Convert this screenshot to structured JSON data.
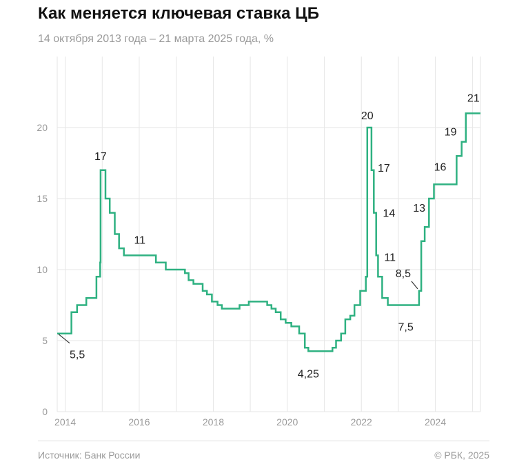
{
  "header": {
    "title": "Как меняется ключевая ставка ЦБ",
    "subtitle": "14 октября 2013 года – 21 марта 2025 года, %"
  },
  "footer": {
    "source": "Источник: Банк России",
    "credit": "© РБК, 2025"
  },
  "colors": {
    "line": "#2eb181",
    "grid": "#e6e6e6",
    "axis_text": "#9a9a9a",
    "label_text": "#222222"
  },
  "chart_data": {
    "type": "line",
    "step": true,
    "title": "Как меняется ключевая ставка ЦБ",
    "subtitle": "14 октября 2013 года – 21 марта 2025 года, %",
    "xlabel": "",
    "ylabel": "",
    "xlim": [
      "2013-10-14",
      "2025-03-21"
    ],
    "ylim": [
      0,
      25
    ],
    "x_ticks": [
      "2014",
      "2016",
      "2018",
      "2020",
      "2022",
      "2024"
    ],
    "y_ticks": [
      "0",
      "5",
      "10",
      "15",
      "20"
    ],
    "grid": true,
    "series": [
      {
        "points": [
          [
            "2013-10-14",
            5.5
          ],
          [
            "2014-03-03",
            7.0
          ],
          [
            "2014-04-28",
            7.5
          ],
          [
            "2014-07-28",
            8.0
          ],
          [
            "2014-11-05",
            9.5
          ],
          [
            "2014-12-12",
            10.5
          ],
          [
            "2014-12-16",
            17.0
          ],
          [
            "2015-02-02",
            15.0
          ],
          [
            "2015-03-16",
            14.0
          ],
          [
            "2015-05-05",
            12.5
          ],
          [
            "2015-06-16",
            11.5
          ],
          [
            "2015-08-03",
            11.0
          ],
          [
            "2016-06-14",
            10.5
          ],
          [
            "2016-09-19",
            10.0
          ],
          [
            "2017-03-27",
            9.75
          ],
          [
            "2017-05-02",
            9.25
          ],
          [
            "2017-06-19",
            9.0
          ],
          [
            "2017-09-18",
            8.5
          ],
          [
            "2017-10-30",
            8.25
          ],
          [
            "2017-12-18",
            7.75
          ],
          [
            "2018-02-12",
            7.5
          ],
          [
            "2018-03-26",
            7.25
          ],
          [
            "2018-09-17",
            7.5
          ],
          [
            "2018-12-17",
            7.75
          ],
          [
            "2019-06-17",
            7.5
          ],
          [
            "2019-07-29",
            7.25
          ],
          [
            "2019-09-09",
            7.0
          ],
          [
            "2019-10-28",
            6.5
          ],
          [
            "2019-12-16",
            6.25
          ],
          [
            "2020-02-10",
            6.0
          ],
          [
            "2020-04-27",
            5.5
          ],
          [
            "2020-06-22",
            4.5
          ],
          [
            "2020-07-27",
            4.25
          ],
          [
            "2021-03-22",
            4.5
          ],
          [
            "2021-04-26",
            5.0
          ],
          [
            "2021-06-15",
            5.5
          ],
          [
            "2021-07-26",
            6.5
          ],
          [
            "2021-09-13",
            6.75
          ],
          [
            "2021-10-25",
            7.5
          ],
          [
            "2021-12-20",
            8.5
          ],
          [
            "2022-02-14",
            9.5
          ],
          [
            "2022-02-28",
            20.0
          ],
          [
            "2022-04-11",
            17.0
          ],
          [
            "2022-05-04",
            14.0
          ],
          [
            "2022-05-27",
            11.0
          ],
          [
            "2022-06-14",
            9.5
          ],
          [
            "2022-07-25",
            8.0
          ],
          [
            "2022-09-19",
            7.5
          ],
          [
            "2023-07-24",
            8.5
          ],
          [
            "2023-08-15",
            12.0
          ],
          [
            "2023-09-18",
            13.0
          ],
          [
            "2023-10-30",
            15.0
          ],
          [
            "2023-12-18",
            16.0
          ],
          [
            "2024-07-29",
            18.0
          ],
          [
            "2024-09-16",
            19.0
          ],
          [
            "2024-10-28",
            21.0
          ],
          [
            "2025-03-21",
            21.0
          ]
        ]
      }
    ],
    "annotations": [
      {
        "text": "5,5",
        "date": "2013-10-14",
        "value": 5.5
      },
      {
        "text": "17",
        "date": "2014-12-16",
        "value": 17
      },
      {
        "text": "11",
        "date": "2015-08-03",
        "value": 11
      },
      {
        "text": "4,25",
        "date": "2020-07-27",
        "value": 4.25
      },
      {
        "text": "20",
        "date": "2022-02-28",
        "value": 20
      },
      {
        "text": "17",
        "date": "2022-04-11",
        "value": 17
      },
      {
        "text": "14",
        "date": "2022-05-04",
        "value": 14
      },
      {
        "text": "11",
        "date": "2022-05-27",
        "value": 11
      },
      {
        "text": "7,5",
        "date": "2022-09-19",
        "value": 7.5
      },
      {
        "text": "8,5",
        "date": "2023-07-24",
        "value": 8.5
      },
      {
        "text": "13",
        "date": "2023-09-18",
        "value": 13
      },
      {
        "text": "16",
        "date": "2023-12-18",
        "value": 16
      },
      {
        "text": "19",
        "date": "2024-09-16",
        "value": 19
      },
      {
        "text": "21",
        "date": "2024-10-28",
        "value": 21
      }
    ]
  }
}
